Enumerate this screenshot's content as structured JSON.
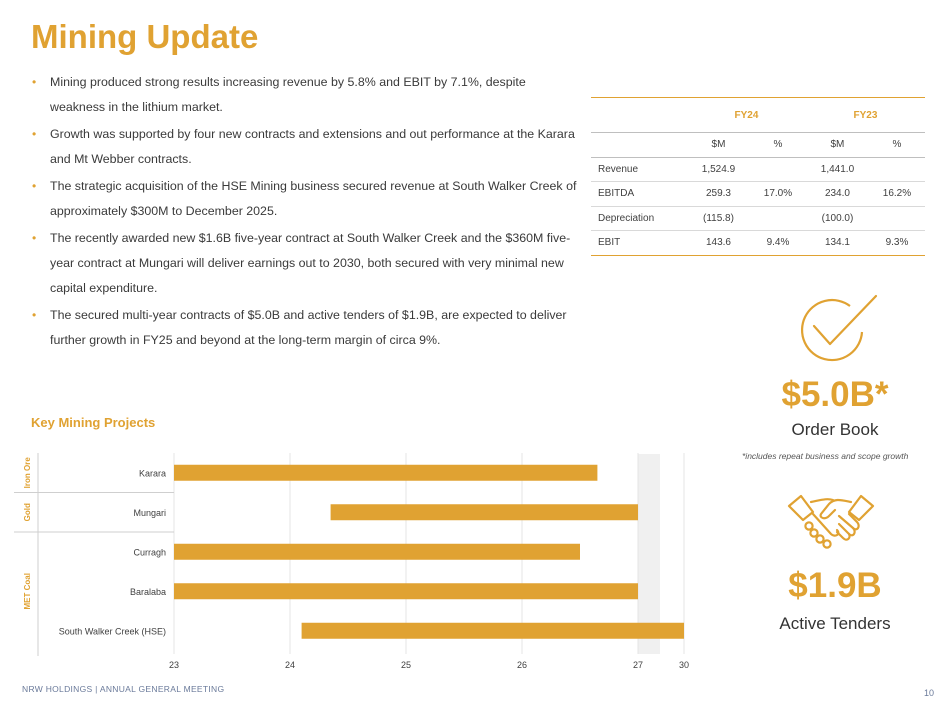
{
  "title": "Mining Update",
  "bullets": [
    "Mining produced strong results increasing revenue by 5.8% and EBIT by 7.1%, despite weakness in the lithium market.",
    "Growth was supported by four new contracts and extensions and out performance at the Karara and Mt Webber contracts.",
    "The strategic acquisition of the HSE Mining business secured revenue at South Walker Creek of approximately $300M to December 2025.",
    "The recently awarded new $1.6B five-year contract at South Walker Creek and the $360M five-year contract at Mungari will deliver earnings out to 2030, both secured with very minimal new capital expenditure.",
    "The secured multi-year contracts of $5.0B and active tenders of $1.9B, are expected to deliver further growth in FY25 and beyond at the long-term margin of circa 9%."
  ],
  "table": {
    "periods": [
      "FY24",
      "FY23"
    ],
    "subheaders": [
      "$M",
      "%",
      "$M",
      "%"
    ],
    "rows": [
      {
        "label": "Revenue",
        "fy24_m": "1,524.9",
        "fy24_pct": "",
        "fy23_m": "1,441.0",
        "fy23_pct": ""
      },
      {
        "label": "EBITDA",
        "fy24_m": "259.3",
        "fy24_pct": "17.0%",
        "fy23_m": "234.0",
        "fy23_pct": "16.2%"
      },
      {
        "label": "Depreciation",
        "fy24_m": "(115.8)",
        "fy24_pct": "",
        "fy23_m": "(100.0)",
        "fy23_pct": ""
      },
      {
        "label": "EBIT",
        "fy24_m": "143.6",
        "fy24_pct": "9.4%",
        "fy23_m": "134.1",
        "fy23_pct": "9.3%"
      }
    ]
  },
  "order_book": {
    "value": "$5.0B*",
    "label": "Order Book",
    "note": "*includes repeat business and scope growth",
    "icon": "checkmark-circle-icon"
  },
  "tenders": {
    "value": "$1.9B",
    "label": "Active Tenders",
    "icon": "handshake-icon"
  },
  "chart_title": "Key Mining Projects",
  "chart_data": {
    "type": "bar",
    "orientation": "horizontal",
    "title": "Key Mining Projects",
    "categories": [
      "Karara",
      "Mungari",
      "Curragh",
      "Baralaba",
      "South Walker Creek (HSE)"
    ],
    "start": [
      23.0,
      24.35,
      23.0,
      23.0,
      24.1
    ],
    "end": [
      26.65,
      27.0,
      26.5,
      27.0,
      30.0
    ],
    "groups": [
      {
        "label": "Iron Ore",
        "categories": [
          "Karara"
        ]
      },
      {
        "label": "Gold",
        "categories": [
          "Mungari"
        ]
      },
      {
        "label": "MET Coal",
        "categories": [
          "Curragh",
          "Baralaba",
          "South Walker Creek (HSE)"
        ]
      }
    ],
    "x_ticks": [
      "23",
      "24",
      "25",
      "26",
      "27",
      "30"
    ],
    "axis_break": [
      27,
      30
    ],
    "color": "#E0A232"
  },
  "footer": "NRW HOLDINGS | ANNUAL GENERAL MEETING",
  "page_number": "10",
  "colors": {
    "accent": "#E0A232",
    "text": "#404040"
  }
}
